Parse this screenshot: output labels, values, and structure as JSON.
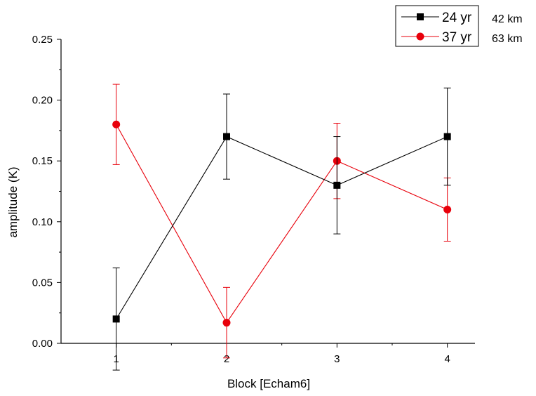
{
  "chart_data": {
    "type": "line",
    "xlabel": "Block [Echam6]",
    "ylabel": "amplitude (K)",
    "x": [
      1,
      2,
      3,
      4
    ],
    "xlim": [
      0.5,
      4.25
    ],
    "ylim": [
      0.0,
      0.25
    ],
    "xticks": [
      "1",
      "2",
      "3",
      "4"
    ],
    "yticks": [
      "0.00",
      "0.05",
      "0.10",
      "0.15",
      "0.20",
      "0.25"
    ],
    "grid": false,
    "legend_position": "top-right",
    "series": [
      {
        "name": "24 yr",
        "annotation": "42 km",
        "color": "#000000",
        "marker": "square",
        "values": [
          0.02,
          0.17,
          0.13,
          0.17
        ],
        "errors": [
          0.042,
          0.035,
          0.04,
          0.04
        ]
      },
      {
        "name": "37 yr",
        "annotation": "63 km",
        "color": "#e8000b",
        "marker": "circle",
        "values": [
          0.18,
          0.017,
          0.15,
          0.11
        ],
        "errors": [
          0.033,
          0.029,
          0.031,
          0.026
        ]
      }
    ]
  }
}
